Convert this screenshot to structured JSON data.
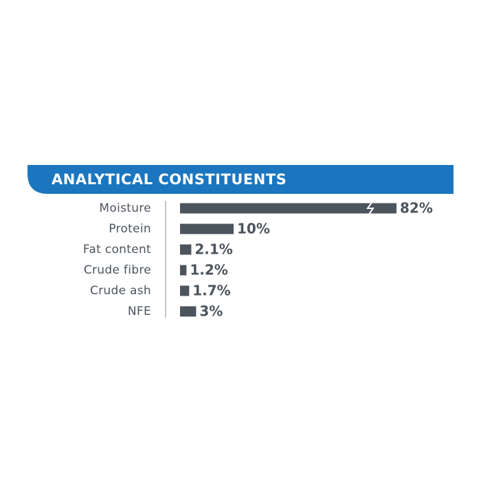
{
  "chart_data": {
    "type": "bar",
    "orientation": "horizontal",
    "title": "ANALYTICAL CONSTITUENTS",
    "categories": [
      "Moisture",
      "Protein",
      "Fat content",
      "Crude fibre",
      "Crude ash",
      "NFE"
    ],
    "values": [
      82,
      10,
      2.1,
      1.2,
      1.7,
      3
    ],
    "value_labels": [
      "82%",
      "10%",
      "2.1%",
      "1.2%",
      "1.7%",
      "3%"
    ],
    "color": "#4c545d",
    "header_color": "#1b76bf"
  }
}
